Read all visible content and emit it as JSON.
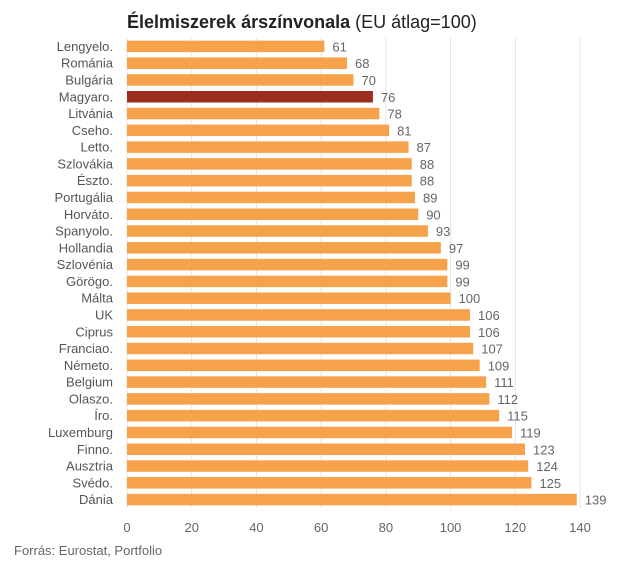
{
  "title": {
    "bold": "Élelmiszerek árszínvonala",
    "rest": "(EU átlag=100)"
  },
  "source": "Forrás: Eurostat, Portfolio",
  "colors": {
    "bar": "#F5A24A",
    "highlight": "#9B2D1F",
    "grid": "#E4E4E4"
  },
  "chart_data": {
    "type": "bar",
    "orientation": "horizontal",
    "title": "Élelmiszerek árszínvonala (EU átlag=100)",
    "categories": [
      "Lengyelo.",
      "Románia",
      "Bulgária",
      "Magyaro.",
      "Litvánia",
      "Cseho.",
      "Letto.",
      "Szlovákia",
      "Észto.",
      "Portugália",
      "Horváto.",
      "Spanyolo.",
      "Hollandia",
      "Szlovénia",
      "Görögo.",
      "Málta",
      "UK",
      "Ciprus",
      "Franciao.",
      "Németo.",
      "Belgium",
      "Olaszo.",
      "Íro.",
      "Luxemburg",
      "Finno.",
      "Ausztria",
      "Svédo.",
      "Dánia"
    ],
    "values": [
      61,
      68,
      70,
      76,
      78,
      81,
      87,
      88,
      88,
      89,
      90,
      93,
      97,
      99,
      99,
      100,
      106,
      106,
      107,
      109,
      111,
      112,
      115,
      119,
      123,
      124,
      125,
      139
    ],
    "highlight": "Magyaro.",
    "xlim": [
      0,
      140
    ],
    "xticks": [
      "0",
      "20",
      "40",
      "60",
      "80",
      "100",
      "120",
      "140"
    ],
    "grid": true
  }
}
